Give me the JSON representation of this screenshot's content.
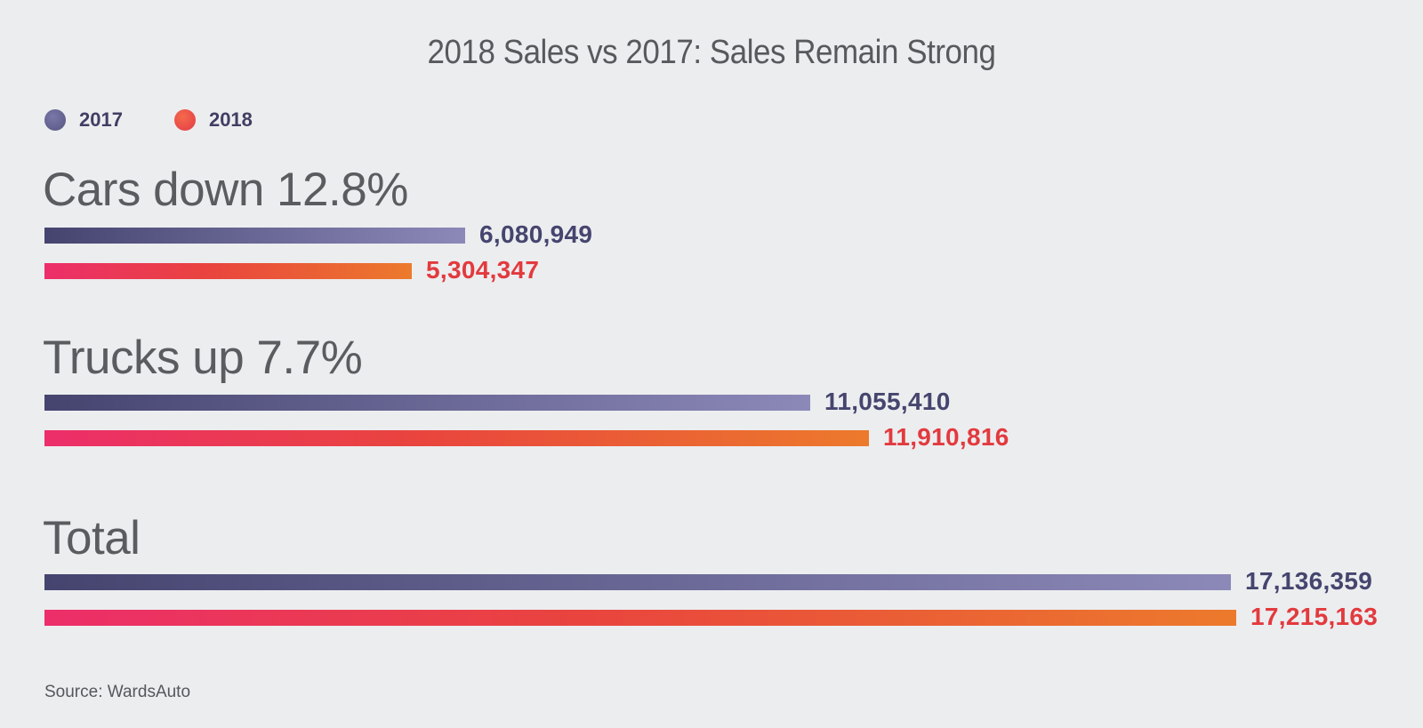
{
  "chart_data": {
    "type": "bar",
    "orientation": "horizontal",
    "title": "2018 Sales vs 2017: Sales Remain Strong",
    "legend": [
      {
        "name": "2017",
        "color": "#5e5c8a"
      },
      {
        "name": "2018",
        "color": "#ea3f45"
      }
    ],
    "groups": [
      {
        "label": "Cars down 12.8%",
        "values": [
          {
            "series": "2017",
            "value": 6080949,
            "label": "6,080,949"
          },
          {
            "series": "2018",
            "value": 5304347,
            "label": "5,304,347"
          }
        ]
      },
      {
        "label": "Trucks up 7.7%",
        "values": [
          {
            "series": "2017",
            "value": 11055410,
            "label": "11,055,410"
          },
          {
            "series": "2018",
            "value": 11910816,
            "label": "11,910,816"
          }
        ]
      },
      {
        "label": "Total",
        "values": [
          {
            "series": "2017",
            "value": 17136359,
            "label": "17,136,359"
          },
          {
            "series": "2018",
            "value": 17215163,
            "label": "17,215,163"
          }
        ]
      }
    ],
    "xlim": [
      0,
      17215163
    ],
    "grid": false,
    "legend_position": "top-left"
  },
  "source": "Source: WardsAuto"
}
